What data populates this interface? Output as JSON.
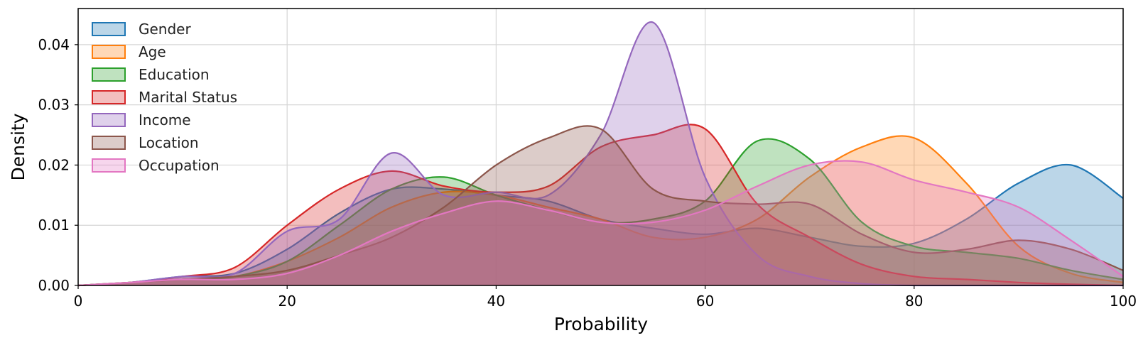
{
  "chart_data": {
    "type": "area",
    "title": "",
    "xlabel": "Probability",
    "ylabel": "Density",
    "xlim": [
      0,
      100
    ],
    "ylim": [
      0,
      0.046
    ],
    "xticks": [
      0,
      20,
      40,
      60,
      80,
      100
    ],
    "yticks": [
      0.0,
      0.01,
      0.02,
      0.03,
      0.04
    ],
    "ytick_labels": [
      "0.00",
      "0.01",
      "0.02",
      "0.03",
      "0.04"
    ],
    "grid": true,
    "legend_position": "top-left",
    "x": [
      0,
      5,
      10,
      15,
      20,
      25,
      30,
      35,
      40,
      45,
      50,
      55,
      60,
      65,
      70,
      75,
      80,
      85,
      90,
      95,
      100
    ],
    "series": [
      {
        "name": "Gender",
        "color": "#1f77b4",
        "values": [
          0,
          0.0005,
          0.0015,
          0.002,
          0.006,
          0.012,
          0.016,
          0.016,
          0.015,
          0.014,
          0.011,
          0.0095,
          0.0085,
          0.0095,
          0.008,
          0.0065,
          0.007,
          0.011,
          0.017,
          0.02,
          0.0145
        ]
      },
      {
        "name": "Age",
        "color": "#ff7f0e",
        "values": [
          0,
          0.0005,
          0.001,
          0.0015,
          0.004,
          0.008,
          0.013,
          0.0155,
          0.015,
          0.013,
          0.011,
          0.008,
          0.008,
          0.011,
          0.018,
          0.023,
          0.0245,
          0.017,
          0.0065,
          0.002,
          0.0005
        ]
      },
      {
        "name": "Education",
        "color": "#2ca02c",
        "values": [
          0,
          0.0005,
          0.001,
          0.0015,
          0.004,
          0.01,
          0.016,
          0.018,
          0.015,
          0.0125,
          0.0105,
          0.011,
          0.014,
          0.024,
          0.021,
          0.0105,
          0.0065,
          0.0055,
          0.0045,
          0.0025,
          0.001
        ]
      },
      {
        "name": "Marital Status",
        "color": "#d62728",
        "values": [
          0,
          0.0005,
          0.0015,
          0.003,
          0.01,
          0.016,
          0.019,
          0.0165,
          0.0155,
          0.0165,
          0.023,
          0.025,
          0.026,
          0.0135,
          0.008,
          0.0035,
          0.0015,
          0.001,
          0.0005,
          0.0002,
          0
        ]
      },
      {
        "name": "Income",
        "color": "#9467bd",
        "values": [
          0,
          0.0005,
          0.0015,
          0.002,
          0.009,
          0.011,
          0.022,
          0.015,
          0.0155,
          0.015,
          0.025,
          0.0437,
          0.018,
          0.005,
          0.0015,
          0.0003,
          0,
          0,
          0,
          0,
          0
        ]
      },
      {
        "name": "Location",
        "color": "#8c564b",
        "values": [
          0,
          0.0005,
          0.001,
          0.0015,
          0.0025,
          0.005,
          0.008,
          0.013,
          0.02,
          0.0245,
          0.026,
          0.016,
          0.014,
          0.0135,
          0.0135,
          0.0085,
          0.0055,
          0.006,
          0.0075,
          0.006,
          0.0025
        ]
      },
      {
        "name": "Occupation",
        "color": "#e377c2",
        "values": [
          0,
          0.0005,
          0.001,
          0.001,
          0.002,
          0.005,
          0.009,
          0.012,
          0.014,
          0.0125,
          0.0105,
          0.0105,
          0.0125,
          0.0165,
          0.02,
          0.0205,
          0.0175,
          0.0155,
          0.013,
          0.0075,
          0.0015
        ]
      }
    ]
  }
}
